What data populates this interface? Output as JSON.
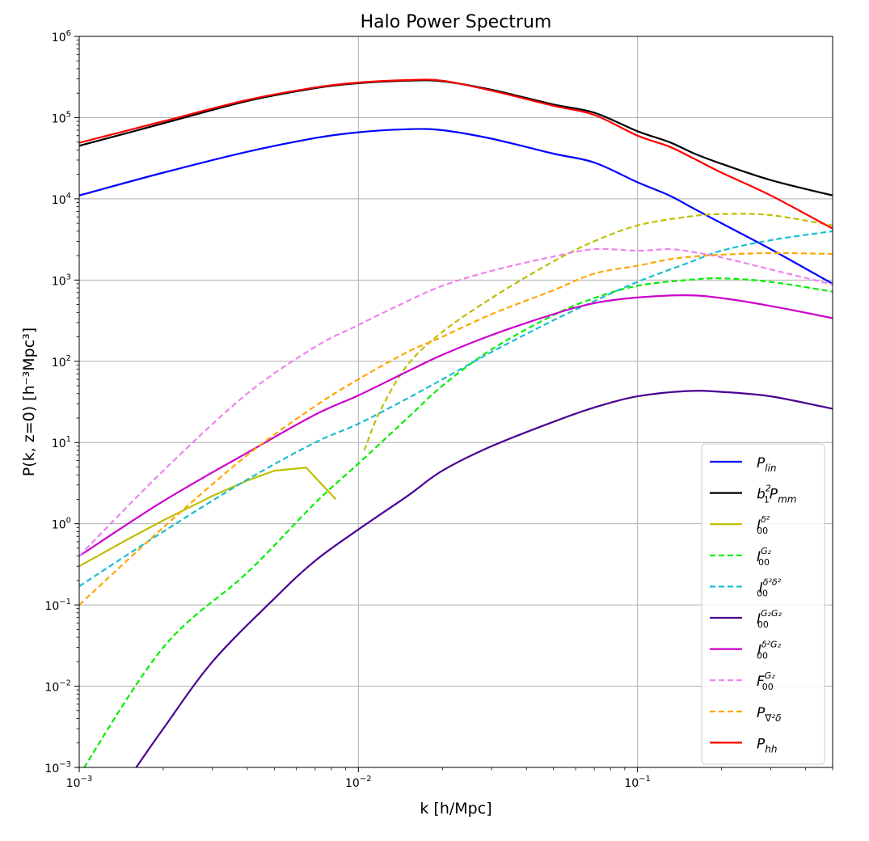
{
  "chart_data": {
    "type": "line",
    "title": "Halo Power Spectrum",
    "xlabel": "k [h/Mpc]",
    "ylabel": "P(k, z=0) [h⁻³Mpc³]",
    "xscale": "log",
    "yscale": "log",
    "xlim": [
      0.001,
      0.5
    ],
    "ylim": [
      0.001,
      1000000
    ],
    "grid": true,
    "legend_position": "bottom-right",
    "xticks": [
      {
        "value": 0.001,
        "base": "10",
        "exp": "−3"
      },
      {
        "value": 0.01,
        "base": "10",
        "exp": "−2"
      },
      {
        "value": 0.1,
        "base": "10",
        "exp": "−1"
      }
    ],
    "yticks": [
      {
        "value": 0.001,
        "base": "10",
        "exp": "−3"
      },
      {
        "value": 0.01,
        "base": "10",
        "exp": "−2"
      },
      {
        "value": 0.1,
        "base": "10",
        "exp": "−1"
      },
      {
        "value": 1,
        "base": "10",
        "exp": "0"
      },
      {
        "value": 10,
        "base": "10",
        "exp": "1"
      },
      {
        "value": 100,
        "base": "10",
        "exp": "2"
      },
      {
        "value": 1000,
        "base": "10",
        "exp": "3"
      },
      {
        "value": 10000,
        "base": "10",
        "exp": "4"
      },
      {
        "value": 100000,
        "base": "10",
        "exp": "5"
      },
      {
        "value": 1000000,
        "base": "10",
        "exp": "6"
      }
    ],
    "series": [
      {
        "id": "p_lin",
        "name": "P_lin",
        "legend": {
          "base": "P",
          "sub": "lin",
          "sup": ""
        },
        "color": "#0000ff",
        "dash": false,
        "x": [
          0.001,
          0.002,
          0.004,
          0.007,
          0.01,
          0.015,
          0.02,
          0.03,
          0.05,
          0.07,
          0.1,
          0.13,
          0.16,
          0.2,
          0.3,
          0.5
        ],
        "y": [
          11000,
          21000,
          38000,
          56000,
          66000,
          72000,
          70000,
          55000,
          36000,
          28000,
          16000,
          11000,
          7500,
          5000,
          2400,
          900
        ]
      },
      {
        "id": "b1_pmm",
        "name": "b1^2 P_mm",
        "legend": {
          "base": "b",
          "sub": "1",
          "sup": "2",
          "post": "P",
          "post_sub": "mm"
        },
        "color": "#000000",
        "dash": false,
        "x": [
          0.001,
          0.002,
          0.004,
          0.007,
          0.01,
          0.015,
          0.02,
          0.03,
          0.05,
          0.07,
          0.1,
          0.13,
          0.16,
          0.2,
          0.3,
          0.5
        ],
        "y": [
          45000,
          85000,
          160000,
          230000,
          265000,
          285000,
          280000,
          220000,
          145000,
          115000,
          68000,
          50000,
          36000,
          27000,
          17000,
          11000
        ]
      },
      {
        "id": "i_d2",
        "name": "I_00^{δ²}",
        "legend": {
          "base": "I",
          "sub": "00",
          "sup": "δ²"
        },
        "color": "#bfbf00",
        "dash": false,
        "x": [
          0.001,
          0.0015,
          0.002,
          0.003,
          0.004,
          0.005,
          0.0065,
          0.0075,
          0.0083
        ],
        "y": [
          0.3,
          0.65,
          1.1,
          2.2,
          3.4,
          4.5,
          4.9,
          2.9,
          2.0
        ]
      },
      {
        "id": "i_d2_b",
        "name": "I_00^{δ²} (upper branch)",
        "legend": null,
        "color": "#bfbf00",
        "dash": true,
        "x": [
          0.0105,
          0.012,
          0.015,
          0.02,
          0.03,
          0.05,
          0.07,
          0.1,
          0.15,
          0.2,
          0.3,
          0.5
        ],
        "y": [
          8,
          25,
          90,
          230,
          600,
          1700,
          3000,
          4700,
          6000,
          6500,
          6300,
          4700
        ]
      },
      {
        "id": "i_g2",
        "name": "I_00^{G2}",
        "legend": {
          "base": "I",
          "sub": "00",
          "sup": "G₂"
        },
        "color": "#00ee00",
        "dash": true,
        "x": [
          0.001,
          0.002,
          0.004,
          0.007,
          0.01,
          0.015,
          0.02,
          0.03,
          0.05,
          0.07,
          0.1,
          0.15,
          0.2,
          0.3,
          0.5
        ],
        "y": [
          0.0008,
          0.03,
          0.25,
          1.8,
          5.5,
          20,
          50,
          140,
          370,
          600,
          850,
          1000,
          1050,
          950,
          720
        ]
      },
      {
        "id": "i_d2d2",
        "name": "I_00^{δ²δ²}",
        "legend": {
          "base": "I",
          "sub": "00",
          "sup": "δ²δ²"
        },
        "color": "#17becf",
        "dash": true,
        "x": [
          0.001,
          0.002,
          0.004,
          0.007,
          0.01,
          0.015,
          0.02,
          0.03,
          0.05,
          0.07,
          0.1,
          0.15,
          0.2,
          0.3,
          0.5
        ],
        "y": [
          0.17,
          0.8,
          3.5,
          10,
          17,
          35,
          60,
          130,
          320,
          550,
          950,
          1600,
          2300,
          3100,
          4000
        ]
      },
      {
        "id": "i_g2g2",
        "name": "I_00^{G2G2}",
        "legend": {
          "base": "I",
          "sub": "00",
          "sup": "G₂G₂"
        },
        "color": "#4b0092",
        "dash": false,
        "x": [
          0.0016,
          0.002,
          0.003,
          0.005,
          0.007,
          0.01,
          0.015,
          0.02,
          0.03,
          0.05,
          0.07,
          0.1,
          0.15,
          0.2,
          0.3,
          0.5
        ],
        "y": [
          0.001,
          0.003,
          0.02,
          0.12,
          0.35,
          0.85,
          2.2,
          4.5,
          9,
          18,
          27,
          37,
          43,
          42,
          37,
          26
        ]
      },
      {
        "id": "i_d2g2",
        "name": "I_00^{δ²G2}",
        "legend": {
          "base": "I",
          "sub": "00",
          "sup": "δ²G₂"
        },
        "color": "#cc00cc",
        "dash": false,
        "x": [
          0.001,
          0.002,
          0.004,
          0.007,
          0.01,
          0.015,
          0.02,
          0.03,
          0.05,
          0.07,
          0.1,
          0.15,
          0.2,
          0.3,
          0.5
        ],
        "y": [
          0.4,
          1.9,
          7.5,
          22,
          38,
          75,
          120,
          210,
          380,
          520,
          610,
          650,
          600,
          480,
          340
        ]
      },
      {
        "id": "f_g2",
        "name": "F_00^{G2}",
        "legend": {
          "base": "F",
          "sub": "00",
          "sup": "G₂"
        },
        "color": "#ee82ee",
        "dash": true,
        "x": [
          0.001,
          0.002,
          0.004,
          0.007,
          0.01,
          0.015,
          0.02,
          0.03,
          0.05,
          0.07,
          0.1,
          0.13,
          0.16,
          0.2,
          0.3,
          0.5
        ],
        "y": [
          0.4,
          4.5,
          40,
          150,
          280,
          550,
          850,
          1300,
          1950,
          2400,
          2300,
          2400,
          2200,
          1900,
          1350,
          880
        ]
      },
      {
        "id": "p_nabla",
        "name": "P_{∇²δ}",
        "legend": {
          "base": "P",
          "sub": "∇²δ",
          "sup": ""
        },
        "color": "#ffa500",
        "dash": true,
        "x": [
          0.001,
          0.002,
          0.004,
          0.007,
          0.01,
          0.015,
          0.02,
          0.03,
          0.05,
          0.07,
          0.1,
          0.13,
          0.16,
          0.2,
          0.3,
          0.5
        ],
        "y": [
          0.1,
          0.9,
          7,
          28,
          60,
          130,
          200,
          380,
          750,
          1200,
          1500,
          1800,
          1950,
          2050,
          2150,
          2100
        ]
      },
      {
        "id": "p_hh",
        "name": "P_hh",
        "legend": {
          "base": "P",
          "sub": "hh",
          "sup": ""
        },
        "color": "#ff0000",
        "dash": false,
        "x": [
          0.001,
          0.002,
          0.004,
          0.007,
          0.01,
          0.015,
          0.02,
          0.03,
          0.05,
          0.07,
          0.1,
          0.13,
          0.16,
          0.2,
          0.3,
          0.5
        ],
        "y": [
          49000,
          90000,
          165000,
          235000,
          270000,
          290000,
          285000,
          215000,
          140000,
          108000,
          60000,
          44000,
          31000,
          21000,
          11000,
          4300
        ]
      }
    ]
  }
}
